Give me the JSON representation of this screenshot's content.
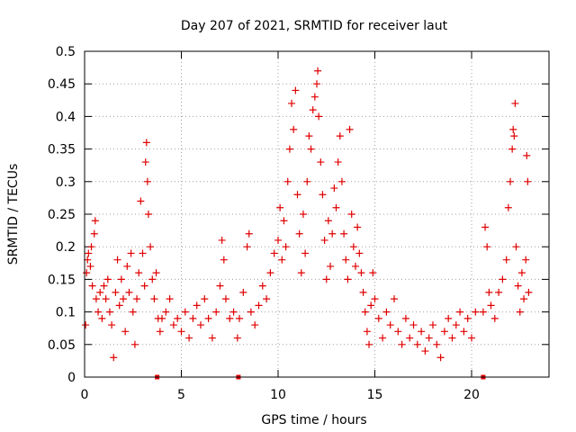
{
  "chart_data": {
    "type": "scatter",
    "title": "Day 207 of 2021, SRMTID for receiver laut",
    "xlabel": "GPS time / hours",
    "ylabel": "SRMTID / TECUs",
    "xlim": [
      0,
      24
    ],
    "ylim": [
      0,
      0.5
    ],
    "grid": true,
    "x_ticks": [
      0,
      5,
      10,
      15,
      20
    ],
    "x_tick_labels": [
      "0",
      "5",
      "10",
      "15",
      "20"
    ],
    "y_ticks": [
      0,
      0.05,
      0.1,
      0.15,
      0.2,
      0.25,
      0.3,
      0.35,
      0.4,
      0.45,
      0.5
    ],
    "y_tick_labels": [
      "0",
      "0.05",
      "0.1",
      "0.15",
      "0.2",
      "0.25",
      "0.3",
      "0.35",
      "0.4",
      "0.45",
      "0.5"
    ],
    "marker": "plus",
    "marker_color": "#e00000",
    "series": [
      {
        "name": "SRMTID",
        "points": [
          [
            0.05,
            0.08
          ],
          [
            0.1,
            0.16
          ],
          [
            0.15,
            0.18
          ],
          [
            0.2,
            0.19
          ],
          [
            0.3,
            0.17
          ],
          [
            0.35,
            0.2
          ],
          [
            0.4,
            0.14
          ],
          [
            0.5,
            0.22
          ],
          [
            0.55,
            0.24
          ],
          [
            0.6,
            0.12
          ],
          [
            0.7,
            0.1
          ],
          [
            0.8,
            0.13
          ],
          [
            0.9,
            0.09
          ],
          [
            1.0,
            0.14
          ],
          [
            1.1,
            0.12
          ],
          [
            1.2,
            0.15
          ],
          [
            1.3,
            0.1
          ],
          [
            1.4,
            0.08
          ],
          [
            1.5,
            0.03
          ],
          [
            1.6,
            0.13
          ],
          [
            1.7,
            0.18
          ],
          [
            1.8,
            0.11
          ],
          [
            1.9,
            0.15
          ],
          [
            2.0,
            0.12
          ],
          [
            2.1,
            0.07
          ],
          [
            2.2,
            0.17
          ],
          [
            2.3,
            0.13
          ],
          [
            2.4,
            0.19
          ],
          [
            2.5,
            0.1
          ],
          [
            2.6,
            0.05
          ],
          [
            2.7,
            0.12
          ],
          [
            2.8,
            0.16
          ],
          [
            2.9,
            0.27
          ],
          [
            3.0,
            0.19
          ],
          [
            3.1,
            0.14
          ],
          [
            3.15,
            0.33
          ],
          [
            3.2,
            0.36
          ],
          [
            3.25,
            0.3
          ],
          [
            3.3,
            0.25
          ],
          [
            3.4,
            0.2
          ],
          [
            3.5,
            0.15
          ],
          [
            3.6,
            0.12
          ],
          [
            3.7,
            0.16
          ],
          [
            3.8,
            0.09
          ],
          [
            3.9,
            0.07
          ],
          [
            4.0,
            0.09
          ],
          [
            4.2,
            0.1
          ],
          [
            4.4,
            0.12
          ],
          [
            4.6,
            0.08
          ],
          [
            4.8,
            0.09
          ],
          [
            5.0,
            0.07
          ],
          [
            5.2,
            0.1
          ],
          [
            5.4,
            0.06
          ],
          [
            5.6,
            0.09
          ],
          [
            5.8,
            0.11
          ],
          [
            6.0,
            0.08
          ],
          [
            6.2,
            0.12
          ],
          [
            6.4,
            0.09
          ],
          [
            6.6,
            0.06
          ],
          [
            6.8,
            0.1
          ],
          [
            7.0,
            0.14
          ],
          [
            7.1,
            0.21
          ],
          [
            7.2,
            0.18
          ],
          [
            7.3,
            0.12
          ],
          [
            7.5,
            0.09
          ],
          [
            7.7,
            0.1
          ],
          [
            7.9,
            0.06
          ],
          [
            8.0,
            0.09
          ],
          [
            8.2,
            0.13
          ],
          [
            8.4,
            0.2
          ],
          [
            8.5,
            0.22
          ],
          [
            8.6,
            0.1
          ],
          [
            8.8,
            0.08
          ],
          [
            9.0,
            0.11
          ],
          [
            9.2,
            0.14
          ],
          [
            9.4,
            0.12
          ],
          [
            9.6,
            0.16
          ],
          [
            9.8,
            0.19
          ],
          [
            10.0,
            0.21
          ],
          [
            10.1,
            0.26
          ],
          [
            10.2,
            0.18
          ],
          [
            10.3,
            0.24
          ],
          [
            10.4,
            0.2
          ],
          [
            10.5,
            0.3
          ],
          [
            10.6,
            0.35
          ],
          [
            10.7,
            0.42
          ],
          [
            10.8,
            0.38
          ],
          [
            10.9,
            0.44
          ],
          [
            11.0,
            0.28
          ],
          [
            11.1,
            0.22
          ],
          [
            11.2,
            0.16
          ],
          [
            11.3,
            0.25
          ],
          [
            11.4,
            0.19
          ],
          [
            11.5,
            0.3
          ],
          [
            11.6,
            0.37
          ],
          [
            11.7,
            0.35
          ],
          [
            11.8,
            0.41
          ],
          [
            11.9,
            0.43
          ],
          [
            12.0,
            0.45
          ],
          [
            12.05,
            0.47
          ],
          [
            12.1,
            0.4
          ],
          [
            12.2,
            0.33
          ],
          [
            12.3,
            0.28
          ],
          [
            12.4,
            0.21
          ],
          [
            12.5,
            0.15
          ],
          [
            12.6,
            0.24
          ],
          [
            12.7,
            0.17
          ],
          [
            12.8,
            0.22
          ],
          [
            12.9,
            0.29
          ],
          [
            13.0,
            0.26
          ],
          [
            13.1,
            0.33
          ],
          [
            13.2,
            0.37
          ],
          [
            13.3,
            0.3
          ],
          [
            13.4,
            0.22
          ],
          [
            13.5,
            0.18
          ],
          [
            13.6,
            0.15
          ],
          [
            13.7,
            0.38
          ],
          [
            13.8,
            0.25
          ],
          [
            13.9,
            0.2
          ],
          [
            14.0,
            0.17
          ],
          [
            14.1,
            0.23
          ],
          [
            14.2,
            0.19
          ],
          [
            14.3,
            0.16
          ],
          [
            14.4,
            0.13
          ],
          [
            14.5,
            0.1
          ],
          [
            14.6,
            0.07
          ],
          [
            14.7,
            0.05
          ],
          [
            14.8,
            0.11
          ],
          [
            14.9,
            0.16
          ],
          [
            15.0,
            0.12
          ],
          [
            15.2,
            0.09
          ],
          [
            15.4,
            0.06
          ],
          [
            15.6,
            0.1
          ],
          [
            15.8,
            0.08
          ],
          [
            16.0,
            0.12
          ],
          [
            16.2,
            0.07
          ],
          [
            16.4,
            0.05
          ],
          [
            16.6,
            0.09
          ],
          [
            16.8,
            0.06
          ],
          [
            17.0,
            0.08
          ],
          [
            17.2,
            0.05
          ],
          [
            17.4,
            0.07
          ],
          [
            17.6,
            0.04
          ],
          [
            17.8,
            0.06
          ],
          [
            18.0,
            0.08
          ],
          [
            18.2,
            0.05
          ],
          [
            18.4,
            0.03
          ],
          [
            18.6,
            0.07
          ],
          [
            18.8,
            0.09
          ],
          [
            19.0,
            0.06
          ],
          [
            19.2,
            0.08
          ],
          [
            19.4,
            0.1
          ],
          [
            19.6,
            0.07
          ],
          [
            19.8,
            0.09
          ],
          [
            20.0,
            0.06
          ],
          [
            20.2,
            0.1
          ],
          [
            20.6,
            0.1
          ],
          [
            20.7,
            0.23
          ],
          [
            20.8,
            0.2
          ],
          [
            20.9,
            0.13
          ],
          [
            21.0,
            0.11
          ],
          [
            21.2,
            0.09
          ],
          [
            21.4,
            0.13
          ],
          [
            21.6,
            0.15
          ],
          [
            21.8,
            0.18
          ],
          [
            21.9,
            0.26
          ],
          [
            22.0,
            0.3
          ],
          [
            22.1,
            0.35
          ],
          [
            22.15,
            0.38
          ],
          [
            22.2,
            0.37
          ],
          [
            22.25,
            0.42
          ],
          [
            22.3,
            0.2
          ],
          [
            22.4,
            0.14
          ],
          [
            22.5,
            0.1
          ],
          [
            22.6,
            0.16
          ],
          [
            22.7,
            0.12
          ],
          [
            22.8,
            0.18
          ],
          [
            22.85,
            0.34
          ],
          [
            22.9,
            0.3
          ],
          [
            22.95,
            0.13
          ]
        ]
      }
    ],
    "gap_markers_x": [
      3.75,
      7.95,
      20.6
    ]
  }
}
